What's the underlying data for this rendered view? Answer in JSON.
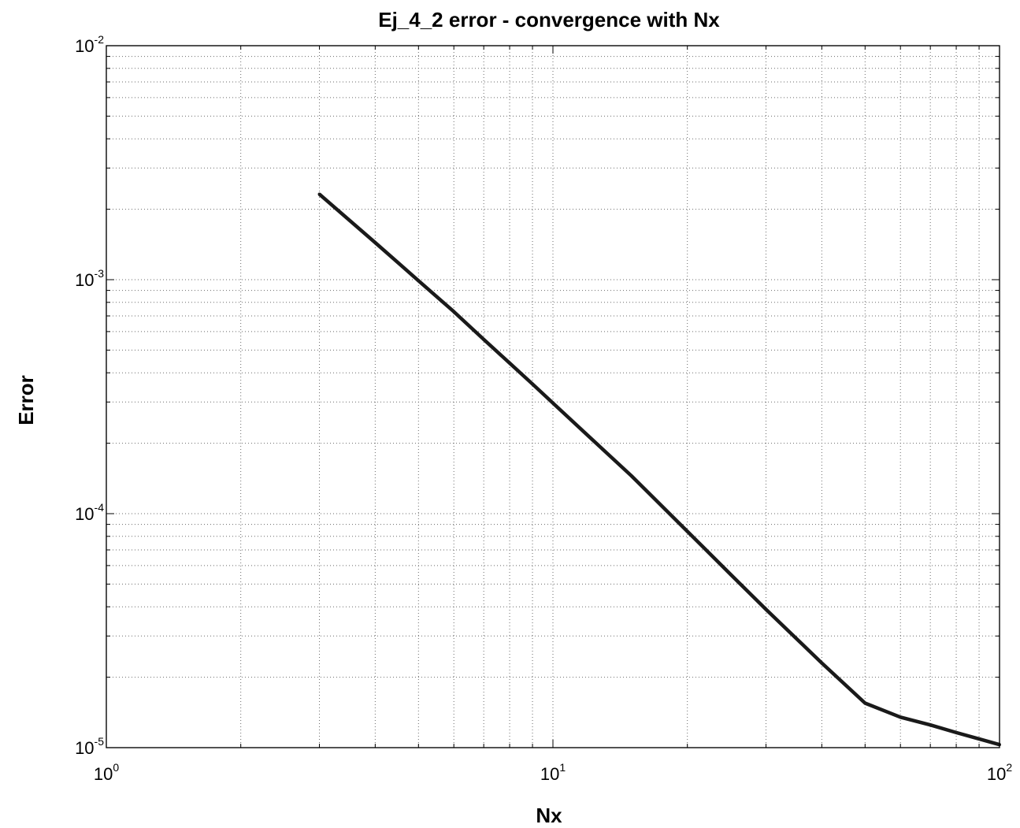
{
  "chart_data": {
    "type": "line",
    "title": "Ej_4_2 error - convergence with Nx",
    "xlabel": "Nx",
    "ylabel": "Error",
    "xscale": "log",
    "yscale": "log",
    "xlim": [
      1,
      100
    ],
    "ylim": [
      1e-05,
      0.01
    ],
    "grid": true,
    "grid_minor": true,
    "legend": "none",
    "x_ticks": [
      {
        "base": "10",
        "exp": "0",
        "value": 1
      },
      {
        "base": "10",
        "exp": "1",
        "value": 10
      },
      {
        "base": "10",
        "exp": "2",
        "value": 100
      }
    ],
    "y_ticks": [
      {
        "base": "10",
        "exp": "-5",
        "value": 1e-05
      },
      {
        "base": "10",
        "exp": "-4",
        "value": 0.0001
      },
      {
        "base": "10",
        "exp": "-3",
        "value": 0.001
      },
      {
        "base": "10",
        "exp": "-2",
        "value": 0.01
      }
    ],
    "series": [
      {
        "color": "#1a1a1a",
        "x": [
          3,
          4,
          5,
          6,
          7,
          8,
          9,
          10,
          12,
          15,
          20,
          25,
          30,
          40,
          50,
          60,
          70,
          80,
          90,
          100
        ],
        "y": [
          0.00232,
          0.00144,
          0.00099,
          0.00073,
          0.000555,
          0.00044,
          0.000358,
          0.000297,
          0.000215,
          0.000145,
          8.4e-05,
          5.5e-05,
          3.9e-05,
          2.3e-05,
          1.55e-05,
          1.35e-05,
          1.25e-05,
          1.16e-05,
          1.09e-05,
          1.03e-05
        ]
      }
    ]
  }
}
